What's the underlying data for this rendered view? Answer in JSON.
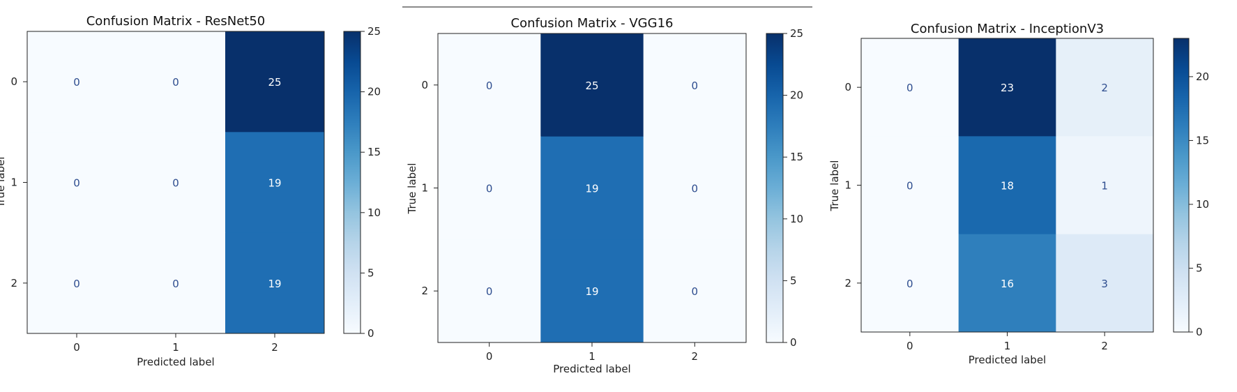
{
  "chart_data": [
    {
      "type": "heatmap",
      "title": "Confusion Matrix - ResNet50",
      "xlabel": "Predicted label",
      "ylabel": "True label",
      "x_categories": [
        "0",
        "1",
        "2"
      ],
      "y_categories": [
        "0",
        "1",
        "2"
      ],
      "matrix": [
        [
          0,
          0,
          25
        ],
        [
          0,
          0,
          19
        ],
        [
          0,
          0,
          19
        ]
      ],
      "colormap": "Blues",
      "colorbar": {
        "range": [
          0,
          25
        ],
        "ticks": [
          0,
          5,
          10,
          15,
          20,
          25
        ]
      }
    },
    {
      "type": "heatmap",
      "title": "Confusion Matrix - VGG16",
      "xlabel": "Predicted label",
      "ylabel": "True label",
      "x_categories": [
        "0",
        "1",
        "2"
      ],
      "y_categories": [
        "0",
        "1",
        "2"
      ],
      "matrix": [
        [
          0,
          25,
          0
        ],
        [
          0,
          19,
          0
        ],
        [
          0,
          19,
          0
        ]
      ],
      "colormap": "Blues",
      "colorbar": {
        "range": [
          0,
          25
        ],
        "ticks": [
          0,
          5,
          10,
          15,
          20,
          25
        ]
      }
    },
    {
      "type": "heatmap",
      "title": "Confusion Matrix - InceptionV3",
      "xlabel": "Predicted label",
      "ylabel": "True label",
      "x_categories": [
        "0",
        "1",
        "2"
      ],
      "y_categories": [
        "0",
        "1",
        "2"
      ],
      "matrix": [
        [
          0,
          23,
          2
        ],
        [
          0,
          18,
          1
        ],
        [
          0,
          16,
          3
        ]
      ],
      "colormap": "Blues",
      "colorbar": {
        "range": [
          0,
          23
        ],
        "ticks": [
          0,
          5,
          10,
          15,
          20
        ]
      }
    }
  ]
}
